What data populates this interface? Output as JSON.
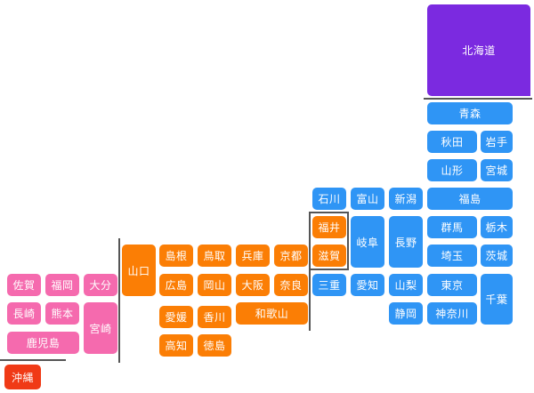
{
  "colors": {
    "hokkaido": "#7b2ae0",
    "east_japan": "#2f95f5",
    "west_japan": "#fb7e05",
    "kyushu": "#f56aae",
    "okinawa": "#f03a16",
    "boundary": "#555555"
  },
  "prefectures": [
    {
      "id": "hokkaido",
      "name": "北海道",
      "region": "hokkaido"
    },
    {
      "id": "aomori",
      "name": "青森",
      "region": "east_japan"
    },
    {
      "id": "akita",
      "name": "秋田",
      "region": "east_japan"
    },
    {
      "id": "iwate",
      "name": "岩手",
      "region": "east_japan"
    },
    {
      "id": "yamagata",
      "name": "山形",
      "region": "east_japan"
    },
    {
      "id": "miyagi",
      "name": "宮城",
      "region": "east_japan"
    },
    {
      "id": "fukushima",
      "name": "福島",
      "region": "east_japan"
    },
    {
      "id": "ishikawa",
      "name": "石川",
      "region": "east_japan"
    },
    {
      "id": "toyama",
      "name": "富山",
      "region": "east_japan"
    },
    {
      "id": "niigata",
      "name": "新潟",
      "region": "east_japan"
    },
    {
      "id": "gifu",
      "name": "岐阜",
      "region": "east_japan"
    },
    {
      "id": "nagano",
      "name": "長野",
      "region": "east_japan"
    },
    {
      "id": "gunma",
      "name": "群馬",
      "region": "east_japan"
    },
    {
      "id": "tochigi",
      "name": "栃木",
      "region": "east_japan"
    },
    {
      "id": "saitama",
      "name": "埼玉",
      "region": "east_japan"
    },
    {
      "id": "ibaraki",
      "name": "茨城",
      "region": "east_japan"
    },
    {
      "id": "mie",
      "name": "三重",
      "region": "east_japan"
    },
    {
      "id": "aichi",
      "name": "愛知",
      "region": "east_japan"
    },
    {
      "id": "yamanashi",
      "name": "山梨",
      "region": "east_japan"
    },
    {
      "id": "tokyo",
      "name": "東京",
      "region": "east_japan"
    },
    {
      "id": "chiba",
      "name": "千葉",
      "region": "east_japan"
    },
    {
      "id": "shizuoka",
      "name": "静岡",
      "region": "east_japan"
    },
    {
      "id": "kanagawa",
      "name": "神奈川",
      "region": "east_japan"
    },
    {
      "id": "fukui",
      "name": "福井",
      "region": "west_japan"
    },
    {
      "id": "shiga",
      "name": "滋賀",
      "region": "west_japan"
    },
    {
      "id": "yamaguchi",
      "name": "山口",
      "region": "west_japan"
    },
    {
      "id": "shimane",
      "name": "島根",
      "region": "west_japan"
    },
    {
      "id": "tottori",
      "name": "鳥取",
      "region": "west_japan"
    },
    {
      "id": "hyogo",
      "name": "兵庫",
      "region": "west_japan"
    },
    {
      "id": "kyoto",
      "name": "京都",
      "region": "west_japan"
    },
    {
      "id": "hiroshima",
      "name": "広島",
      "region": "west_japan"
    },
    {
      "id": "okayama",
      "name": "岡山",
      "region": "west_japan"
    },
    {
      "id": "osaka",
      "name": "大阪",
      "region": "west_japan"
    },
    {
      "id": "nara",
      "name": "奈良",
      "region": "west_japan"
    },
    {
      "id": "ehime",
      "name": "愛媛",
      "region": "west_japan"
    },
    {
      "id": "kagawa",
      "name": "香川",
      "region": "west_japan"
    },
    {
      "id": "wakayama",
      "name": "和歌山",
      "region": "west_japan"
    },
    {
      "id": "kochi",
      "name": "高知",
      "region": "west_japan"
    },
    {
      "id": "tokushima",
      "name": "徳島",
      "region": "west_japan"
    },
    {
      "id": "saga",
      "name": "佐賀",
      "region": "kyushu"
    },
    {
      "id": "fukuoka",
      "name": "福岡",
      "region": "kyushu"
    },
    {
      "id": "oita",
      "name": "大分",
      "region": "kyushu"
    },
    {
      "id": "nagasaki",
      "name": "長崎",
      "region": "kyushu"
    },
    {
      "id": "kumamoto",
      "name": "熊本",
      "region": "kyushu"
    },
    {
      "id": "miyazaki",
      "name": "宮崎",
      "region": "kyushu"
    },
    {
      "id": "kagoshima",
      "name": "鹿児島",
      "region": "kyushu"
    },
    {
      "id": "okinawa",
      "name": "沖縄",
      "region": "okinawa"
    }
  ]
}
